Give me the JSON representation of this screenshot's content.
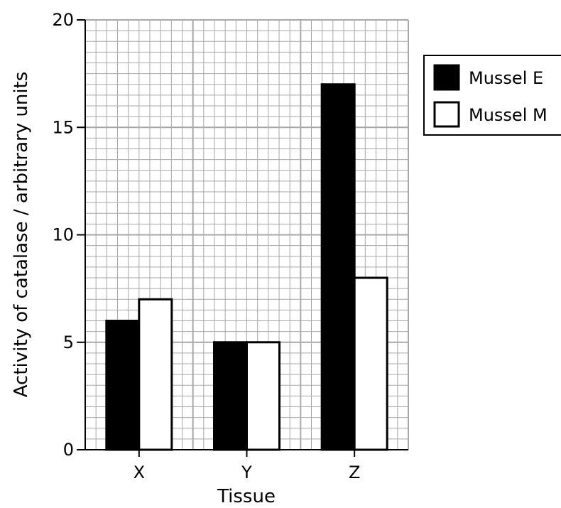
{
  "chart_data": {
    "type": "bar",
    "categories": [
      "X",
      "Y",
      "Z"
    ],
    "series": [
      {
        "name": "Mussel E",
        "values": [
          6,
          5,
          17
        ],
        "color": "#000000"
      },
      {
        "name": "Mussel M",
        "values": [
          7,
          5,
          8
        ],
        "color": "#ffffff"
      }
    ],
    "xlabel": "Tissue",
    "ylabel": "Activity of catalase / arbitrary units",
    "ylim": [
      0,
      20
    ],
    "yticks": [
      0,
      5,
      10,
      15,
      20
    ],
    "grid": true,
    "legend_position": "right"
  }
}
